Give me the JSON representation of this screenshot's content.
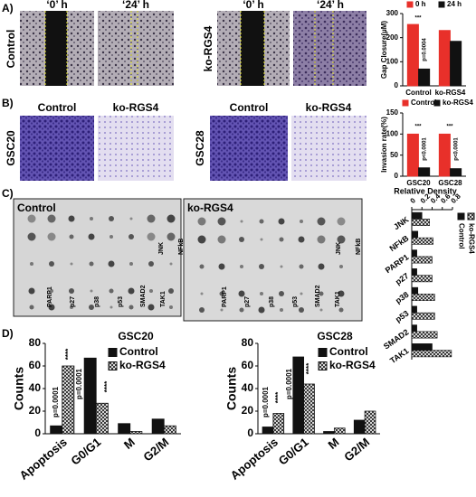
{
  "figure": {
    "panel_labels": [
      "A)",
      "B)",
      "C)",
      "D)"
    ],
    "a": {
      "row_labels": [
        "Control",
        "ko-RGS4"
      ],
      "image_labels": [
        "‘0’ h",
        "‘24’ h",
        "‘0’ h",
        "‘24’ h"
      ]
    },
    "b": {
      "row_labels": [
        "GSC20",
        "GSC28"
      ],
      "image_labels": [
        "Control",
        "ko-RGS4",
        "Control",
        "ko-RGS4"
      ]
    },
    "c": {
      "blot_labels": [
        "Control",
        "ko-RGS4"
      ],
      "spot_labels": [
        "JNK",
        "NFkB",
        "PARP1",
        "p27",
        "p38",
        "p53",
        "SMAD2",
        "TAK1"
      ]
    }
  },
  "chart_data": [
    {
      "type": "bar",
      "y_label": "Gap Closure(µM)",
      "categories": [
        "Control",
        "ko-RGS4"
      ],
      "series": [
        {
          "name": "0 h",
          "color": "#e8302a",
          "values": [
            255,
            230
          ]
        },
        {
          "name": "24 h",
          "color": "#111111",
          "values": [
            70,
            185
          ]
        }
      ],
      "ylim": [
        0,
        300
      ],
      "yticks": [
        0,
        100,
        200,
        300
      ],
      "annotations": [
        "***",
        "p=0.0004"
      ]
    },
    {
      "type": "bar",
      "y_label": "Invasion rate(%)",
      "categories": [
        "GSC20",
        "GSC28"
      ],
      "series": [
        {
          "name": "Control",
          "color": "#e8302a",
          "values": [
            100,
            100
          ]
        },
        {
          "name": "ko-RGS4",
          "color": "#111111",
          "values": [
            20,
            18
          ]
        }
      ],
      "ylim": [
        0,
        150
      ],
      "yticks": [
        0,
        50,
        100,
        150
      ],
      "annotations": [
        "***",
        "p<0.0001",
        "***",
        "p<0.0001"
      ]
    },
    {
      "type": "hbar",
      "x_label": "Relative Density",
      "categories": [
        "JNK",
        "NFkB",
        "PARP1",
        "p27",
        "p38",
        "p53",
        "SMAD2",
        "TAK1"
      ],
      "series": [
        {
          "name": "Control",
          "color": "#111111",
          "values": [
            0.2,
            0.12,
            0.1,
            0.1,
            0.12,
            0.1,
            0.1,
            0.4
          ]
        },
        {
          "name": "ko-RGS4",
          "color": "#111111",
          "pattern": "hatch",
          "values": [
            0.35,
            0.42,
            0.4,
            0.4,
            0.45,
            0.45,
            0.5,
            0.78
          ]
        }
      ],
      "xlim": [
        0,
        0.8
      ],
      "xticks": [
        0,
        0.2,
        0.4,
        0.6,
        0.8
      ]
    },
    {
      "type": "bar",
      "title": "GSC20",
      "y_label": "Counts",
      "categories": [
        "Apoptosis",
        "G0/G1",
        "M",
        "G2/M"
      ],
      "series": [
        {
          "name": "Control",
          "color": "#111111",
          "values": [
            7,
            67,
            9,
            13
          ]
        },
        {
          "name": "ko-RGS4",
          "color": "#111111",
          "pattern": "hatch",
          "values": [
            60,
            27,
            2,
            7
          ]
        }
      ],
      "ylim": [
        0,
        80
      ],
      "yticks": [
        0,
        20,
        40,
        60,
        80
      ],
      "annotations": [
        "p=0.0001",
        "****",
        "****",
        "p=0.0001"
      ]
    },
    {
      "type": "bar",
      "title": "GSC28",
      "y_label": "Counts",
      "categories": [
        "Apoptosis",
        "G0/G1",
        "M",
        "G2/M"
      ],
      "series": [
        {
          "name": "Control",
          "color": "#111111",
          "values": [
            6,
            68,
            2,
            12
          ]
        },
        {
          "name": "ko-RGS4",
          "color": "#111111",
          "pattern": "hatch",
          "values": [
            18,
            44,
            5,
            20
          ]
        }
      ],
      "ylim": [
        0,
        80
      ],
      "yticks": [
        0,
        20,
        40,
        60,
        80
      ],
      "annotations": [
        "p=0.0001",
        "****",
        "****",
        "p=0.0001"
      ]
    }
  ]
}
